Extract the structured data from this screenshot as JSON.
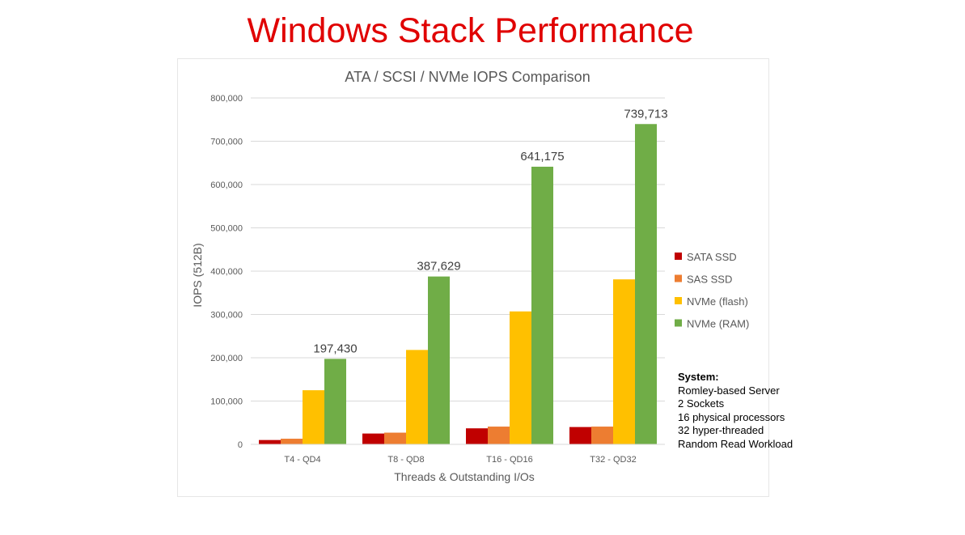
{
  "slide_title": "Windows Stack Performance",
  "system_note": {
    "heading": "System:",
    "lines": [
      "Romley-based Server",
      "2 Sockets",
      "16 physical processors",
      "32 hyper-threaded",
      "Random Read Workload"
    ]
  },
  "chart_data": {
    "type": "bar",
    "title": "ATA / SCSI / NVMe IOPS Comparison",
    "xlabel": "Threads & Outstanding I/Os",
    "ylabel": "IOPS (512B)",
    "ylim": [
      0,
      800000
    ],
    "yticks": [
      0,
      100000,
      200000,
      300000,
      400000,
      500000,
      600000,
      700000,
      800000
    ],
    "ytick_labels": [
      "0",
      "100,000",
      "200,000",
      "300,000",
      "400,000",
      "500,000",
      "600,000",
      "700,000",
      "800,000"
    ],
    "grid": true,
    "legend_position": "right",
    "categories": [
      "T4 - QD4",
      "T8 - QD8",
      "T16 - QD16",
      "T32 - QD32"
    ],
    "series": [
      {
        "name": "SATA SSD",
        "color": "#c00000",
        "values": [
          10000,
          25000,
          37000,
          40000
        ]
      },
      {
        "name": "SAS SSD",
        "color": "#ed7d31",
        "values": [
          13000,
          27000,
          41000,
          41000
        ]
      },
      {
        "name": "NVMe (flash)",
        "color": "#ffc000",
        "values": [
          125000,
          218000,
          307000,
          381000
        ]
      },
      {
        "name": "NVMe (RAM)",
        "color": "#70ad47",
        "values": [
          197430,
          387629,
          641175,
          739713
        ]
      }
    ],
    "data_labels": {
      "series": "NVMe (RAM)",
      "labels": [
        "197,430",
        "387,629",
        "641,175",
        "739,713"
      ]
    }
  }
}
